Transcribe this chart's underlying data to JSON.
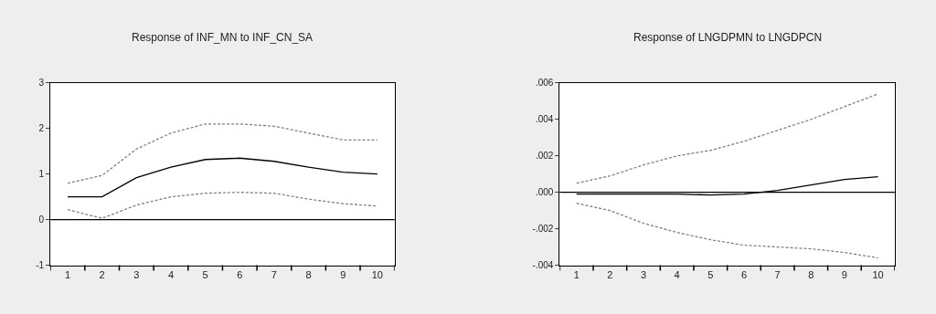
{
  "chart_data": [
    {
      "type": "line",
      "title": "Response of INF_MN to INF_CN_SA",
      "categories": [
        "1",
        "2",
        "3",
        "4",
        "5",
        "6",
        "7",
        "8",
        "9",
        "10"
      ],
      "ylim": [
        -1,
        3
      ],
      "yticks": [
        -1,
        0,
        1,
        2,
        3
      ],
      "grid": false,
      "marker": "none",
      "ref_lines": [
        {
          "axis": "y",
          "value": 0,
          "color": "#000000"
        }
      ],
      "series": [
        {
          "color": "#000000",
          "line_style": "solid",
          "values": [
            0.5,
            0.5,
            0.92,
            1.15,
            1.32,
            1.35,
            1.28,
            1.15,
            1.04,
            1.0
          ]
        },
        {
          "color": "#808080",
          "line_style": "dashed",
          "values": [
            0.8,
            0.97,
            1.55,
            1.9,
            2.1,
            2.1,
            2.05,
            1.9,
            1.75,
            1.75
          ]
        },
        {
          "color": "#808080",
          "line_style": "dashed",
          "values": [
            0.22,
            0.03,
            0.32,
            0.5,
            0.58,
            0.6,
            0.58,
            0.45,
            0.35,
            0.3
          ]
        }
      ]
    },
    {
      "type": "line",
      "title": "Response of LNGDPMN to LNGDPCN",
      "categories": [
        "1",
        "2",
        "3",
        "4",
        "5",
        "6",
        "7",
        "8",
        "9",
        "10"
      ],
      "ylim": [
        -0.004,
        0.006
      ],
      "yticks": [
        {
          "value": -0.004,
          "label": "-.004"
        },
        {
          "value": -0.002,
          "label": "-.002"
        },
        {
          "value": 0,
          "label": ".000"
        },
        {
          "value": 0.002,
          "label": ".002"
        },
        {
          "value": 0.004,
          "label": ".004"
        },
        {
          "value": 0.006,
          "label": ".006"
        }
      ],
      "grid": false,
      "marker": "none",
      "ref_lines": [
        {
          "axis": "y",
          "value": 0,
          "color": "#000000"
        }
      ],
      "series": [
        {
          "color": "#000000",
          "line_style": "solid",
          "values": [
            -0.0001,
            -0.0001,
            -0.0001,
            -0.0001,
            -0.00015,
            -0.0001,
            0.0001,
            0.0004,
            0.0007,
            0.00085
          ]
        },
        {
          "color": "#808080",
          "line_style": "dashed",
          "values": [
            0.0005,
            0.0009,
            0.0015,
            0.002,
            0.0023,
            0.0028,
            0.0034,
            0.004,
            0.0047,
            0.0054
          ]
        },
        {
          "color": "#808080",
          "line_style": "dashed",
          "values": [
            -0.0006,
            -0.001,
            -0.0017,
            -0.0022,
            -0.0026,
            -0.0029,
            -0.003,
            -0.0031,
            -0.0033,
            -0.0036
          ]
        }
      ]
    }
  ]
}
